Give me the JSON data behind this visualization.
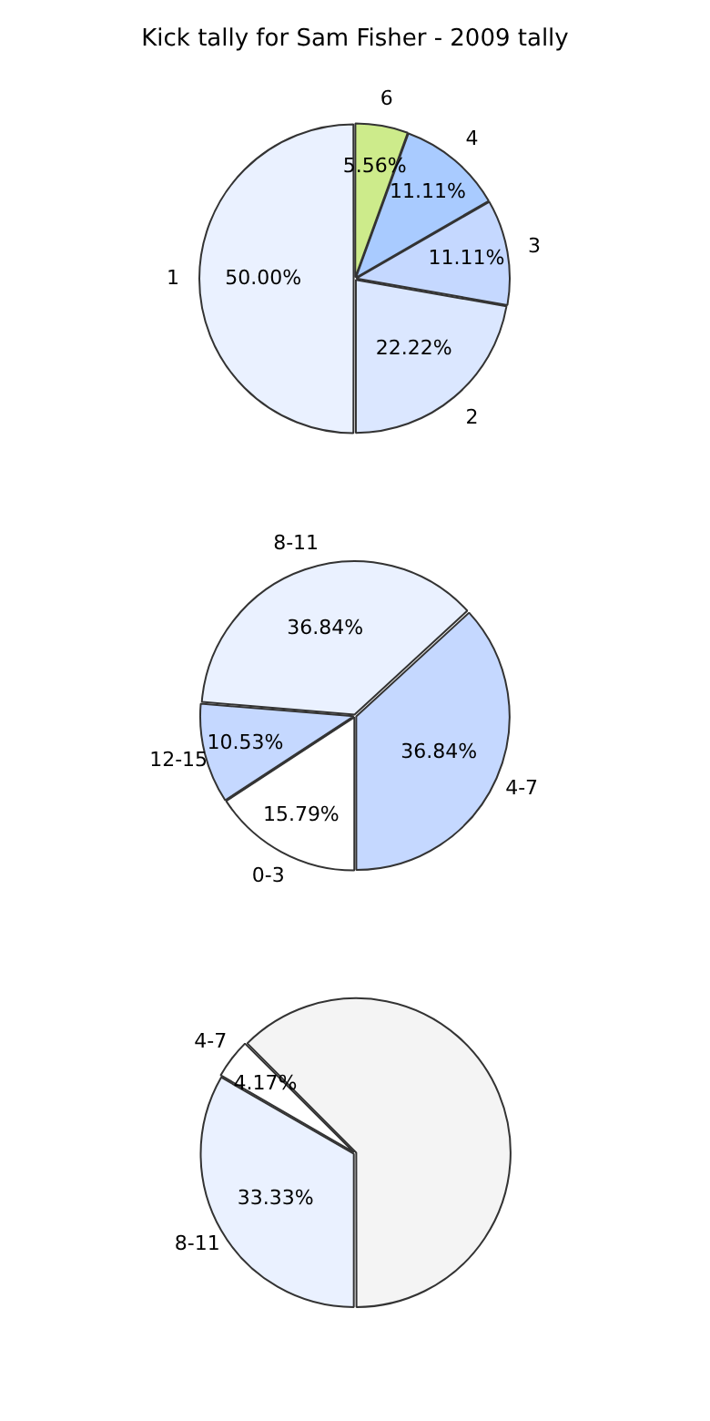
{
  "chart_data": [
    {
      "type": "pie",
      "title": "Kick tally for Sam Fisher - 2009 tally",
      "categories": [
        "1",
        "6",
        "4",
        "3",
        "2"
      ],
      "values": [
        50.0,
        5.56,
        11.11,
        11.11,
        22.22
      ],
      "value_labels": [
        "50.00%",
        "5.56%",
        "11.11%",
        "11.11%",
        "22.22%"
      ],
      "colors": [
        "#eaf1ff",
        "#cdeb8b",
        "#a9cbff",
        "#c5d8ff",
        "#dbe7ff"
      ],
      "legend": false
    },
    {
      "type": "pie",
      "categories": [
        "0-3",
        "12-15",
        "8-11",
        "4-7"
      ],
      "values": [
        15.79,
        10.53,
        36.84,
        36.84
      ],
      "value_labels": [
        "15.79%",
        "10.53%",
        "36.84%",
        "36.84%"
      ],
      "colors": [
        "#ffffff",
        "#c5d8ff",
        "#eaf1ff",
        "#c5d8ff"
      ],
      "legend": false
    },
    {
      "type": "pie",
      "categories": [
        "8-11",
        "4-7",
        null
      ],
      "values": [
        33.33,
        4.17,
        62.5
      ],
      "value_labels": [
        "33.33%",
        "4.17%",
        null
      ],
      "colors": [
        "#eaf1ff",
        "#ffffff",
        "#f4f4f4"
      ],
      "legend": false
    }
  ]
}
